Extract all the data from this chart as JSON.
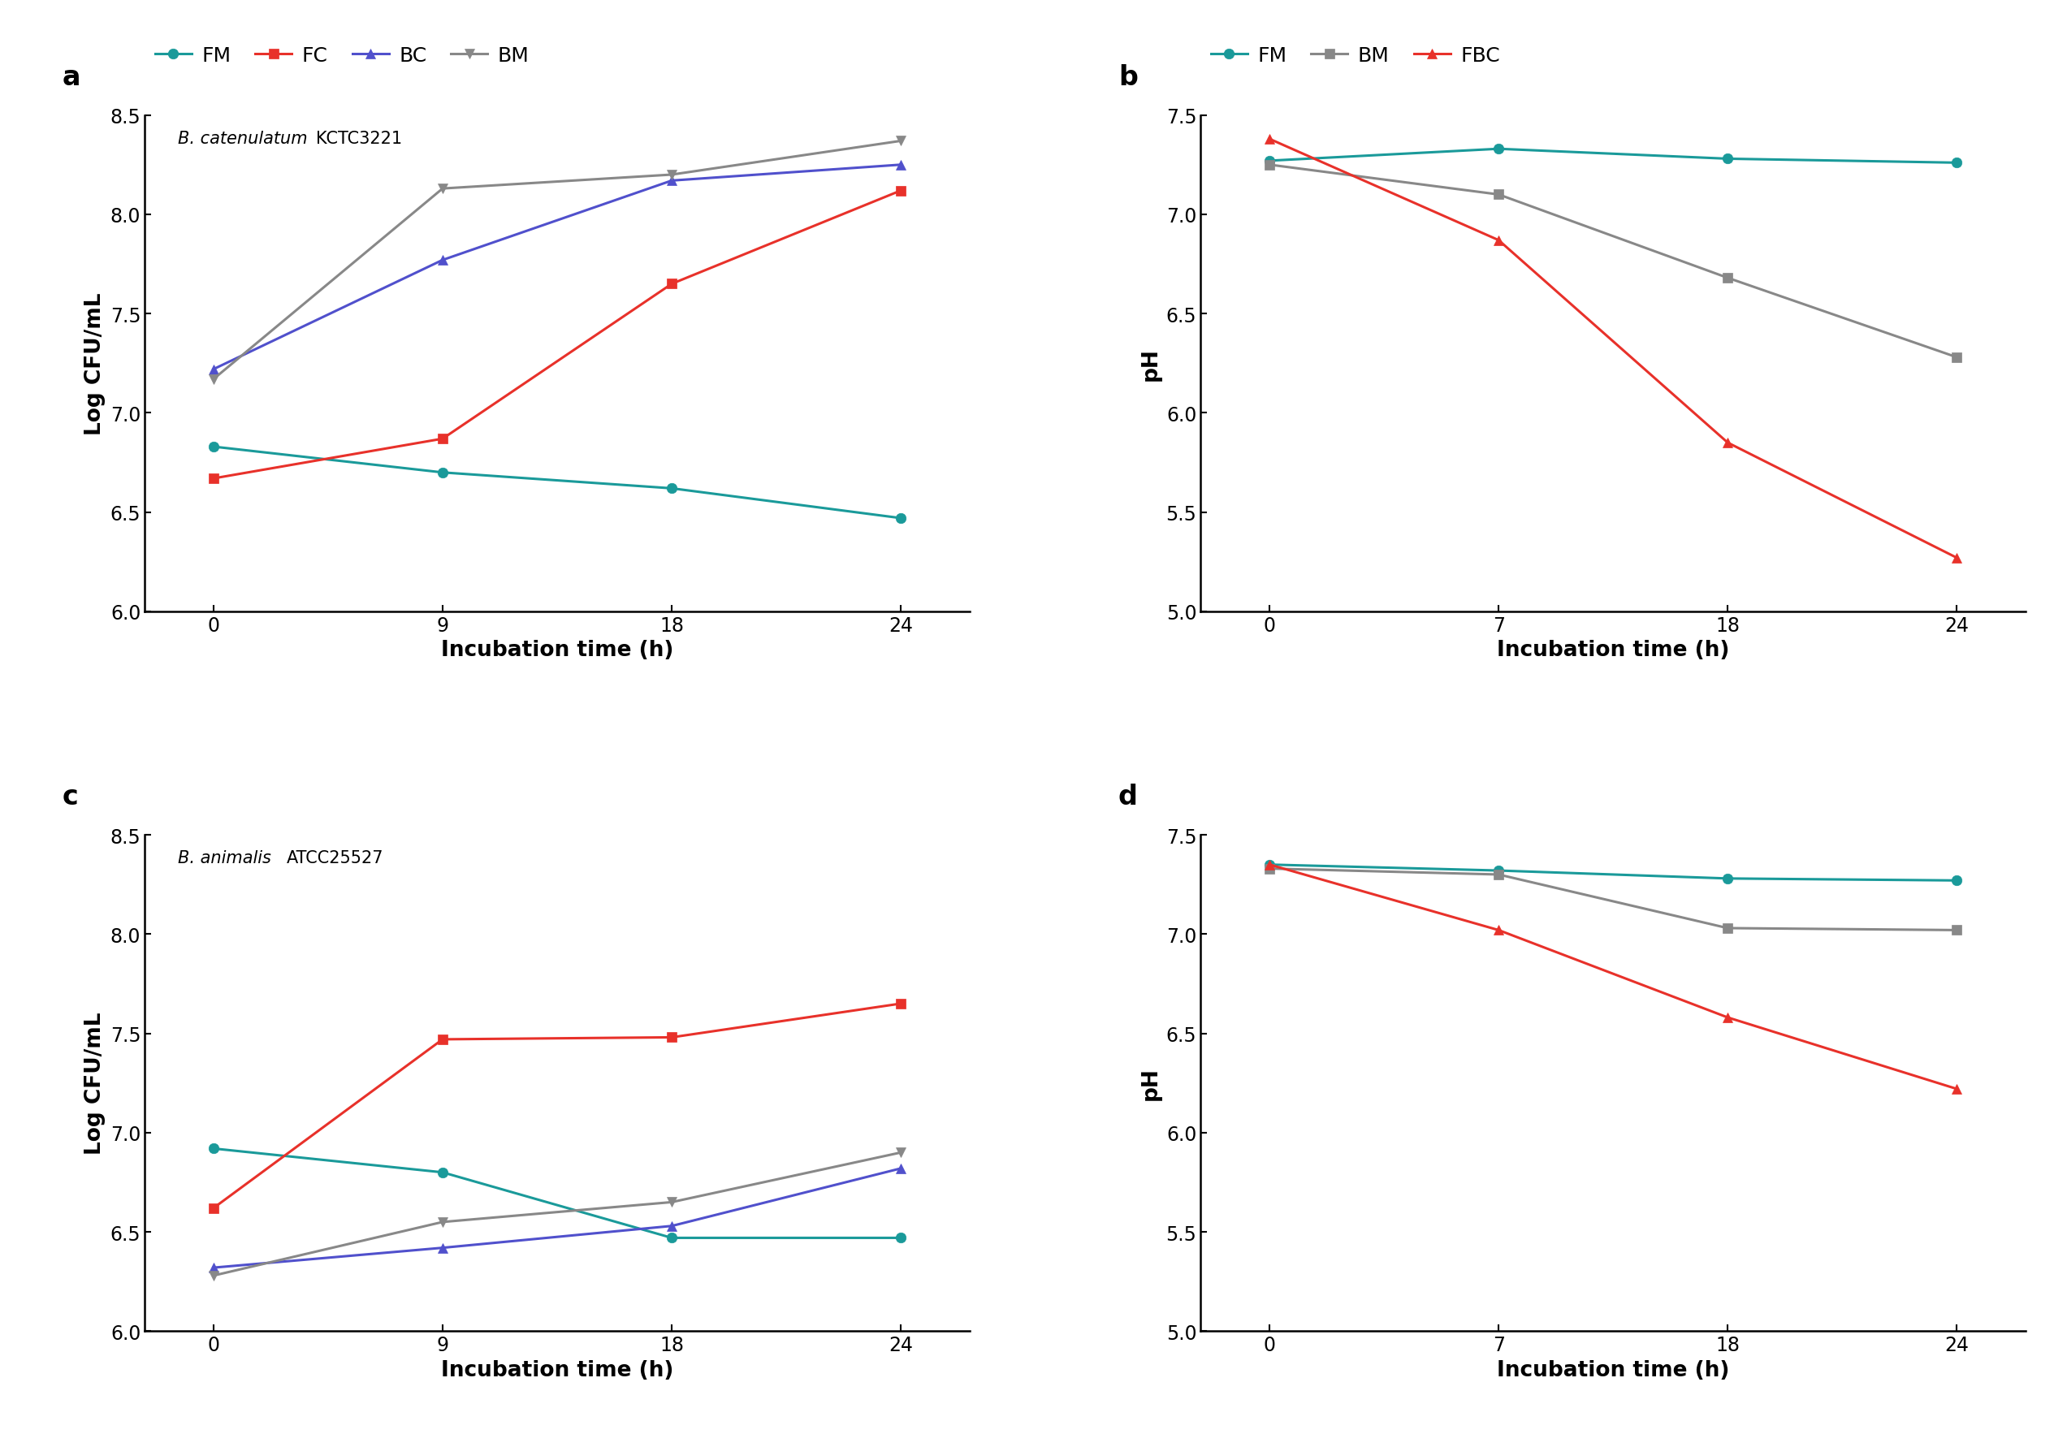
{
  "panel_a": {
    "title_italic": "B. catenulatum",
    "title_normal": "KCTC3221",
    "xlabel": "Incubation time (h)",
    "ylabel": "Log CFU/mL",
    "xticklabels": [
      "0",
      "9",
      "18",
      "24"
    ],
    "ylim": [
      6.0,
      8.5
    ],
    "yticks": [
      6.0,
      6.5,
      7.0,
      7.5,
      8.0,
      8.5
    ],
    "series": {
      "FM": {
        "y": [
          6.83,
          6.7,
          6.62,
          6.47
        ],
        "color": "#1A9A9A",
        "marker": "o"
      },
      "FC": {
        "y": [
          6.67,
          6.87,
          7.65,
          8.12
        ],
        "color": "#E8312A",
        "marker": "s"
      },
      "BC": {
        "y": [
          7.22,
          7.77,
          8.17,
          8.25
        ],
        "color": "#5050CC",
        "marker": "^"
      },
      "BM": {
        "y": [
          7.17,
          8.13,
          8.2,
          8.37
        ],
        "color": "#888888",
        "marker": "v"
      }
    },
    "legend_order": [
      "FM",
      "FC",
      "BC",
      "BM"
    ]
  },
  "panel_b": {
    "title_italic": "",
    "title_normal": "",
    "xlabel": "Incubation time (h)",
    "ylabel": "pH",
    "xticklabels": [
      "0",
      "7",
      "18",
      "24"
    ],
    "ylim": [
      5.0,
      7.5
    ],
    "yticks": [
      5.0,
      5.5,
      6.0,
      6.5,
      7.0,
      7.5
    ],
    "series": {
      "FM": {
        "y": [
          7.27,
          7.33,
          7.28,
          7.26
        ],
        "color": "#1A9A9A",
        "marker": "o"
      },
      "BM": {
        "y": [
          7.25,
          7.1,
          6.68,
          6.28
        ],
        "color": "#888888",
        "marker": "s"
      },
      "FBC": {
        "y": [
          7.38,
          6.87,
          5.85,
          5.27
        ],
        "color": "#E8312A",
        "marker": "^"
      }
    },
    "legend_order": [
      "FM",
      "BM",
      "FBC"
    ]
  },
  "panel_c": {
    "title_italic": "B. animalis",
    "title_normal": "ATCC25527",
    "xlabel": "Incubation time (h)",
    "ylabel": "Log CFU/mL",
    "xticklabels": [
      "0",
      "9",
      "18",
      "24"
    ],
    "ylim": [
      6.0,
      8.5
    ],
    "yticks": [
      6.0,
      6.5,
      7.0,
      7.5,
      8.0,
      8.5
    ],
    "series": {
      "FM": {
        "y": [
          6.92,
          6.8,
          6.47,
          6.47
        ],
        "color": "#1A9A9A",
        "marker": "o"
      },
      "FC": {
        "y": [
          6.62,
          7.47,
          7.48,
          7.65
        ],
        "color": "#E8312A",
        "marker": "s"
      },
      "BC": {
        "y": [
          6.32,
          6.42,
          6.53,
          6.82
        ],
        "color": "#5050CC",
        "marker": "^"
      },
      "BM": {
        "y": [
          6.28,
          6.55,
          6.65,
          6.9
        ],
        "color": "#888888",
        "marker": "v"
      }
    },
    "legend_order": [
      "FM",
      "FC",
      "BC",
      "BM"
    ]
  },
  "panel_d": {
    "title_italic": "",
    "title_normal": "",
    "xlabel": "Incubation time (h)",
    "ylabel": "pH",
    "xticklabels": [
      "0",
      "7",
      "18",
      "24"
    ],
    "ylim": [
      5.0,
      7.5
    ],
    "yticks": [
      5.0,
      5.5,
      6.0,
      6.5,
      7.0,
      7.5
    ],
    "series": {
      "FM": {
        "y": [
          7.35,
          7.32,
          7.28,
          7.27
        ],
        "color": "#1A9A9A",
        "marker": "o"
      },
      "BM": {
        "y": [
          7.33,
          7.3,
          7.03,
          7.02
        ],
        "color": "#888888",
        "marker": "s"
      },
      "FBC": {
        "y": [
          7.35,
          7.02,
          6.58,
          6.22
        ],
        "color": "#E8312A",
        "marker": "^"
      }
    },
    "legend_order": [
      "FM",
      "BM",
      "FBC"
    ]
  },
  "linewidth": 2.2,
  "markersize": 9,
  "fontsize_label": 19,
  "fontsize_tick": 17,
  "fontsize_legend": 18,
  "fontsize_panel": 24,
  "fontsize_annot": 15
}
